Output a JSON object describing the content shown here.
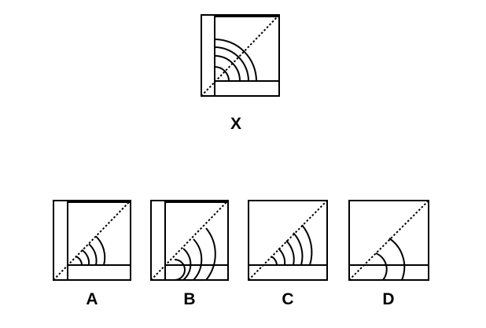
{
  "question": {
    "figure_label": "X"
  },
  "options": [
    {
      "label": "A"
    },
    {
      "label": "B"
    },
    {
      "label": "C"
    },
    {
      "label": "D"
    }
  ],
  "colors": {
    "ink": "#000000",
    "background": "#ffffff"
  }
}
